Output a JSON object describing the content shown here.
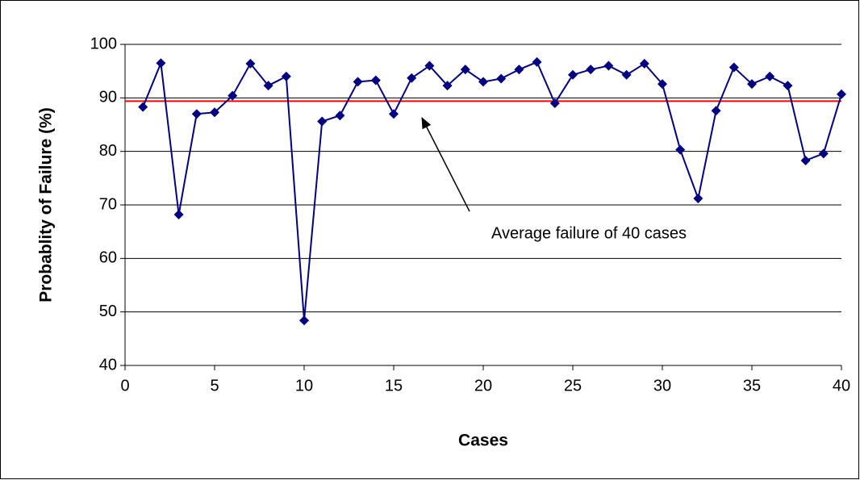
{
  "chart_data": {
    "type": "line",
    "x_label": "Cases",
    "y_label": "Probablity of Failure (%)",
    "x": [
      1,
      2,
      3,
      4,
      5,
      6,
      7,
      8,
      9,
      10,
      11,
      12,
      13,
      14,
      15,
      16,
      17,
      18,
      19,
      20,
      21,
      22,
      23,
      24,
      25,
      26,
      27,
      28,
      29,
      30,
      31,
      32,
      33,
      34,
      35,
      36,
      37,
      38,
      39,
      40
    ],
    "series": [
      {
        "color": "#000080",
        "values": [
          88.3,
          96.5,
          68.2,
          87,
          87.3,
          90.4,
          96.4,
          92.3,
          94,
          48.4,
          85.6,
          86.7,
          93,
          93.3,
          87,
          93.7,
          96,
          92.3,
          95.3,
          93,
          93.6,
          95.3,
          96.7,
          89,
          94.3,
          95.3,
          96,
          94.3,
          96.4,
          92.6,
          80.3,
          71.2,
          87.6,
          95.7,
          92.6,
          94,
          92.3,
          78.3,
          79.6,
          90.7
        ]
      }
    ],
    "reference_line": {
      "value": 89.4,
      "color": "#ff0000"
    },
    "annotation": "Average failure of 40 cases",
    "xlim": [
      0,
      40
    ],
    "xticks": [
      0,
      5,
      10,
      15,
      20,
      25,
      30,
      35,
      40
    ],
    "ylim": [
      40,
      100
    ],
    "yticks": [
      40,
      50,
      60,
      70,
      80,
      90,
      100
    ],
    "grid": true,
    "marker": "diamond"
  }
}
